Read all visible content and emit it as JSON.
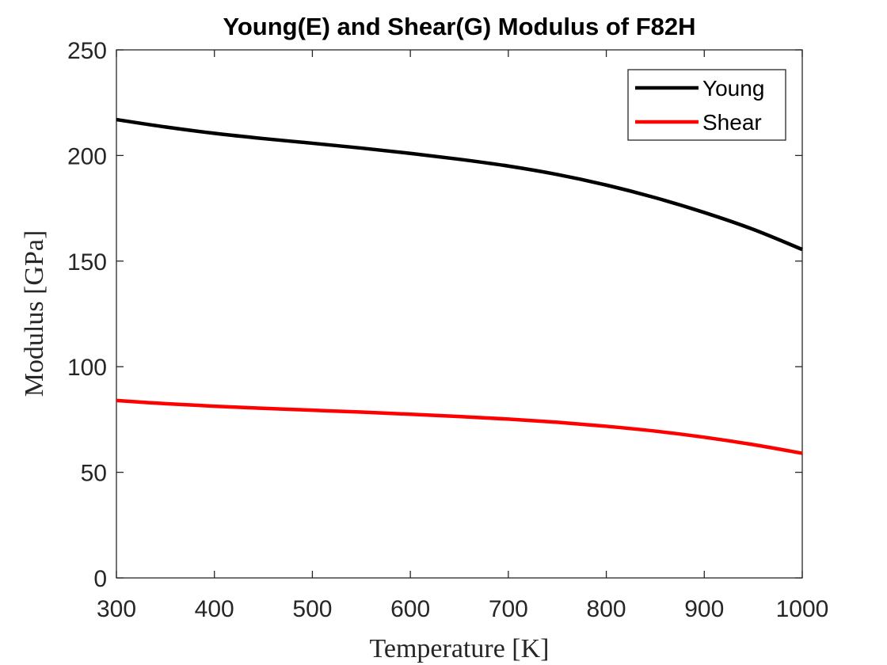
{
  "chart_data": {
    "type": "line",
    "title": "Young(E) and Shear(G) Modulus of F82H",
    "xlabel": "Temperature [K]",
    "ylabel": "Modulus [GPa]",
    "xlim": [
      300,
      1000
    ],
    "ylim": [
      0,
      250
    ],
    "xticks": [
      300,
      400,
      500,
      600,
      700,
      800,
      900,
      1000
    ],
    "yticks": [
      0,
      50,
      100,
      150,
      200,
      250
    ],
    "grid": false,
    "legend_position": "top-right",
    "series": [
      {
        "name": "Young",
        "color": "#000000",
        "x": [
          300,
          350,
          400,
          450,
          500,
          550,
          600,
          650,
          700,
          750,
          800,
          850,
          900,
          950,
          1000
        ],
        "y": [
          217,
          213.5,
          210.5,
          208,
          205.8,
          203.5,
          201,
          198.2,
          195,
          191,
          186,
          180,
          173,
          165,
          155.5
        ]
      },
      {
        "name": "Shear",
        "color": "#ff0000",
        "x": [
          300,
          350,
          400,
          450,
          500,
          550,
          600,
          650,
          700,
          750,
          800,
          850,
          900,
          950,
          1000
        ],
        "y": [
          84,
          82.5,
          81.3,
          80.3,
          79.4,
          78.5,
          77.5,
          76.4,
          75.2,
          73.7,
          71.8,
          69.5,
          66.6,
          63.1,
          59
        ]
      }
    ]
  }
}
